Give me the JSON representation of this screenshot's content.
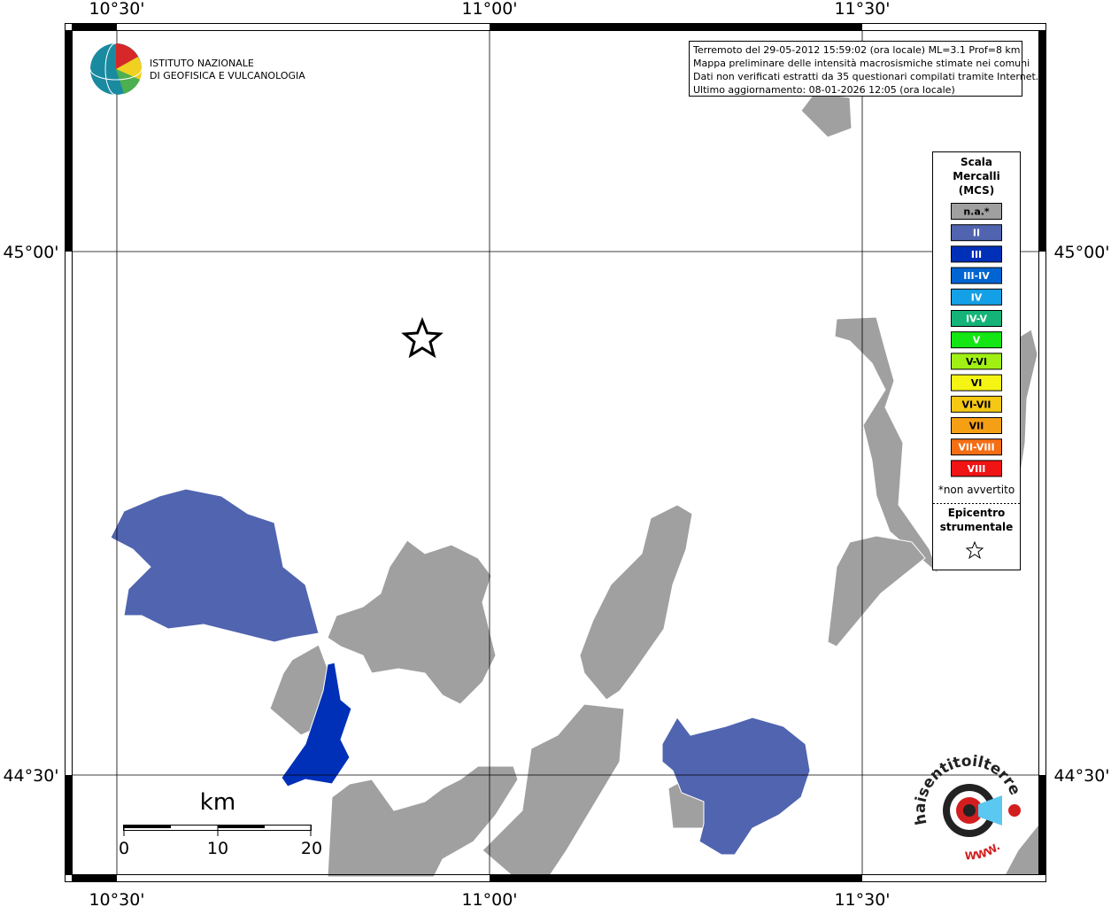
{
  "header": {
    "logo_lines": [
      "ISTITUTO NAZIONALE",
      "DI GEOFISICA E VULCANOLOGIA"
    ]
  },
  "info_box": {
    "lines": [
      "Terremoto del 29-05-2012 15:59:02 (ora locale) ML=3.1 Prof=8 km",
      "Mappa preliminare delle intensità macrosismiche stimate nei comuni",
      "Dati non verificati estratti da 35 questionari compilati tramite Internet.",
      "Ultimo aggiornamento: 08-01-2026 12:05 (ora locale)"
    ]
  },
  "map": {
    "longitude_labels": [
      "10°30'",
      "11°00'",
      "11°30'"
    ],
    "latitude_labels": [
      "45°00'",
      "44°30'"
    ]
  },
  "legend": {
    "title_lines": [
      "Scala",
      "Mercalli",
      "(MCS)"
    ],
    "classes": [
      {
        "label": "n.a.*",
        "color": "#a0a0a0"
      },
      {
        "label": "II",
        "color": "#5064b0"
      },
      {
        "label": "III",
        "color": "#0030b8"
      },
      {
        "label": "III-IV",
        "color": "#0064d2"
      },
      {
        "label": "IV",
        "color": "#14a0e6"
      },
      {
        "label": "IV-V",
        "color": "#14b478"
      },
      {
        "label": "V",
        "color": "#14e614"
      },
      {
        "label": "V-VI",
        "color": "#a0f014"
      },
      {
        "label": "VI",
        "color": "#f5f514"
      },
      {
        "label": "VI-VII",
        "color": "#f5c814"
      },
      {
        "label": "VII",
        "color": "#f5a014"
      },
      {
        "label": "VII-VIII",
        "color": "#f56e14"
      },
      {
        "label": "VIII",
        "color": "#f01414"
      }
    ],
    "note": "*non avvertito",
    "epicenter_lines": [
      "Epicentro",
      "strumentale"
    ]
  },
  "scale_bar": {
    "unit": "km",
    "labels": [
      "0",
      "10",
      "20"
    ]
  },
  "badge": {
    "text": "haisentitoilterremoto.it",
    "www": "WWW."
  }
}
